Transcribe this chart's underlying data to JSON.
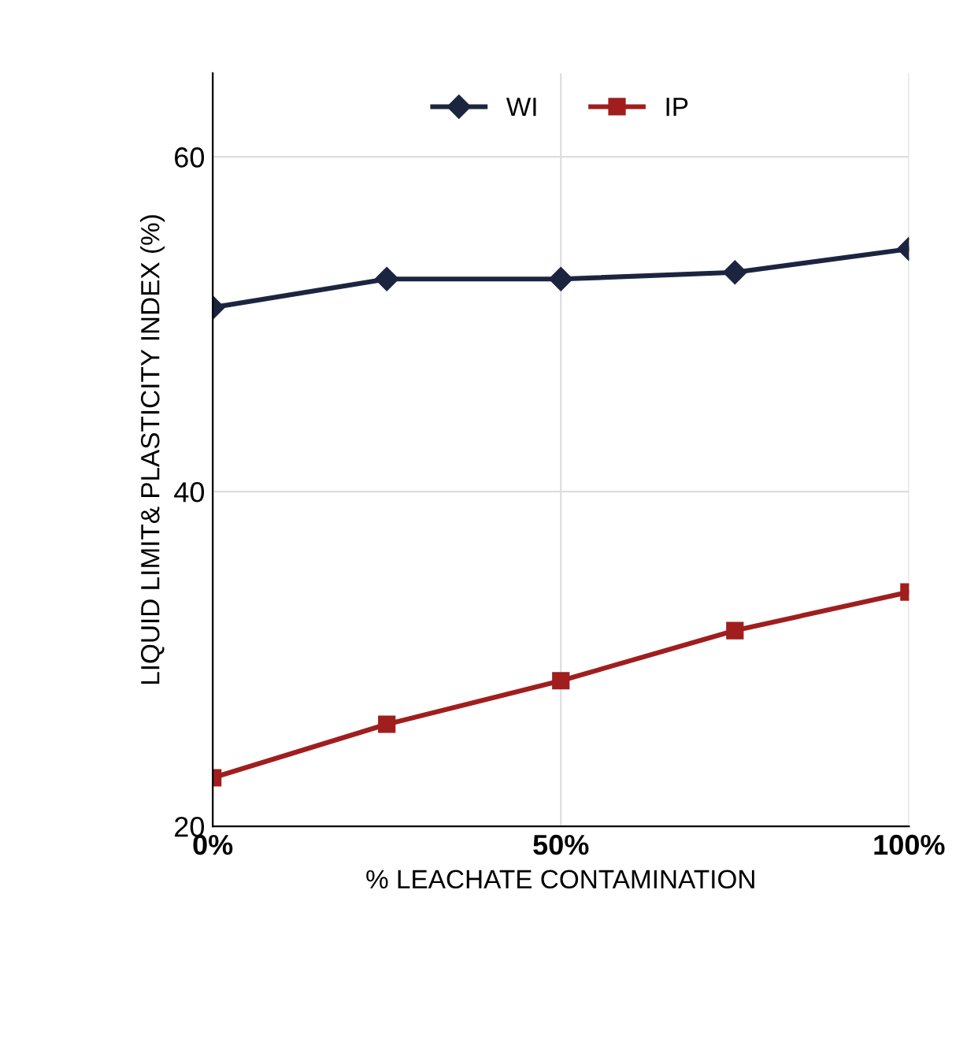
{
  "chart_data": {
    "type": "line",
    "xlabel": "% LEACHATE CONTAMINATION",
    "ylabel": "LIQUID LIMIT& PLASTICITY INDEX (%)",
    "x": [
      0,
      25,
      50,
      75,
      100
    ],
    "series": [
      {
        "name": "WI",
        "color": "#1c2540",
        "values": [
          51,
          52.7,
          52.7,
          53.1,
          54.5
        ],
        "marker": "diamond"
      },
      {
        "name": "IP",
        "color": "#a01e1e",
        "values": [
          22.9,
          26.1,
          28.7,
          31.7,
          34
        ],
        "marker": "square"
      }
    ],
    "xlim": [
      0,
      100
    ],
    "xticks": [
      {
        "value": 0,
        "label": "0%"
      },
      {
        "value": 50,
        "label": "50%"
      },
      {
        "value": 100,
        "label": "100%"
      }
    ],
    "ylim": [
      20,
      65
    ],
    "yticks": [
      20,
      40,
      60
    ],
    "grid": true,
    "legend": "top",
    "line_style": "solid"
  }
}
